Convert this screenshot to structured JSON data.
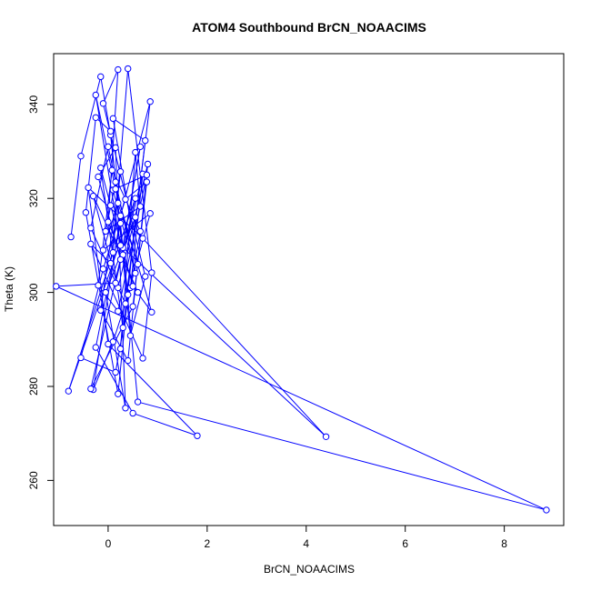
{
  "chart_data": {
    "type": "line",
    "title": "ATOM4 Southbound BrCN_NOAACIMS",
    "xlabel": "BrCN_NOAACIMS",
    "ylabel": "Theta (K)",
    "xlim": [
      -1.1,
      9.2
    ],
    "ylim": [
      250.4,
      350.8
    ],
    "xticks": [
      0,
      2,
      4,
      6,
      8
    ],
    "yticks": [
      260,
      280,
      300,
      320,
      340
    ],
    "series_color": "#0000ff",
    "grid": false,
    "legend": "none",
    "series": [
      {
        "values": [
          [
            -0.75,
            311.8
          ],
          [
            -0.55,
            329.0
          ],
          [
            -0.15,
            345.9
          ],
          [
            0.05,
            333.5
          ],
          [
            0.3,
            308.0
          ],
          [
            0.7,
            325.2
          ],
          [
            0.45,
            301.0
          ],
          [
            0.1,
            289.5
          ],
          [
            -0.3,
            279.3
          ],
          [
            0.25,
            316.3
          ],
          [
            0.85,
            340.6
          ],
          [
            0.35,
            297.6
          ],
          [
            -0.35,
            313.7
          ],
          [
            0.0,
            331.0
          ],
          [
            0.55,
            304.1
          ],
          [
            0.1,
            321.8
          ],
          [
            0.78,
            325.0
          ],
          [
            0.2,
            296.0
          ],
          [
            -0.2,
            301.5
          ],
          [
            0.08,
            326.0
          ],
          [
            0.65,
            313.0
          ],
          [
            0.15,
            283.0
          ],
          [
            -0.55,
            286.1
          ],
          [
            -0.1,
            305.0
          ],
          [
            0.35,
            319.8
          ],
          [
            0.78,
            323.5
          ],
          [
            0.5,
            297.0
          ],
          [
            -0.35,
            279.5
          ],
          [
            0.3,
            309.5
          ],
          [
            0.65,
            331.0
          ],
          [
            0.25,
            307.0
          ],
          [
            -0.2,
            324.6
          ],
          [
            0.15,
            330.8
          ],
          [
            0.35,
            275.4
          ],
          [
            -0.05,
            300.0
          ],
          [
            0.55,
            316.0
          ],
          [
            0.2,
            278.4
          ],
          [
            -0.45,
            317.0
          ],
          [
            -0.25,
            337.2
          ],
          [
            0.05,
            334.3
          ],
          [
            0.45,
            290.8
          ],
          [
            0.75,
            303.4
          ],
          [
            -0.1,
            340.2
          ],
          [
            0.2,
            347.4
          ],
          [
            0.0,
            315.0
          ],
          [
            0.6,
            300.0
          ],
          [
            -0.3,
            320.5
          ],
          [
            0.2,
            301.0
          ],
          [
            0.8,
            327.3
          ],
          [
            0.4,
            285.5
          ],
          [
            -0.15,
            296.2
          ],
          [
            0.25,
            325.7
          ],
          [
            0.05,
            306.2
          ],
          [
            -0.35,
            310.3
          ],
          [
            0.7,
            286.0
          ],
          [
            0.88,
            304.2
          ],
          [
            0.4,
            347.6
          ],
          [
            0.1,
            308.5
          ],
          [
            -0.8,
            279.0
          ],
          [
            0.55,
            320.0
          ],
          [
            0.15,
            302.0
          ],
          [
            -1.05,
            301.3
          ],
          [
            8.85,
            253.7
          ],
          [
            0.6,
            276.7
          ],
          [
            0.25,
            314.7
          ],
          [
            -0.25,
            288.3
          ],
          [
            0.5,
            274.3
          ],
          [
            1.8,
            269.5
          ],
          [
            0.0,
            289.0
          ],
          [
            -0.4,
            322.3
          ],
          [
            0.7,
            311.5
          ],
          [
            4.4,
            269.3
          ],
          [
            0.25,
            310.0
          ],
          [
            -0.25,
            342.0
          ],
          [
            0.15,
            322.0
          ],
          [
            0.88,
            295.8
          ],
          [
            0.5,
            301.3
          ],
          [
            0.05,
            318.5
          ],
          [
            -0.15,
            326.5
          ],
          [
            0.3,
            292.5
          ],
          [
            0.75,
            332.3
          ],
          [
            0.1,
            337.0
          ],
          [
            0.6,
            306.0
          ],
          [
            0.2,
            319.0
          ],
          [
            -0.1,
            309.0
          ],
          [
            0.85,
            316.8
          ],
          [
            0.4,
            299.5
          ],
          [
            0.15,
            323.5
          ],
          [
            -0.05,
            313.0
          ],
          [
            0.65,
            318.3
          ],
          [
            0.55,
            329.8
          ],
          [
            0.25,
            288.0
          ]
        ]
      }
    ]
  }
}
